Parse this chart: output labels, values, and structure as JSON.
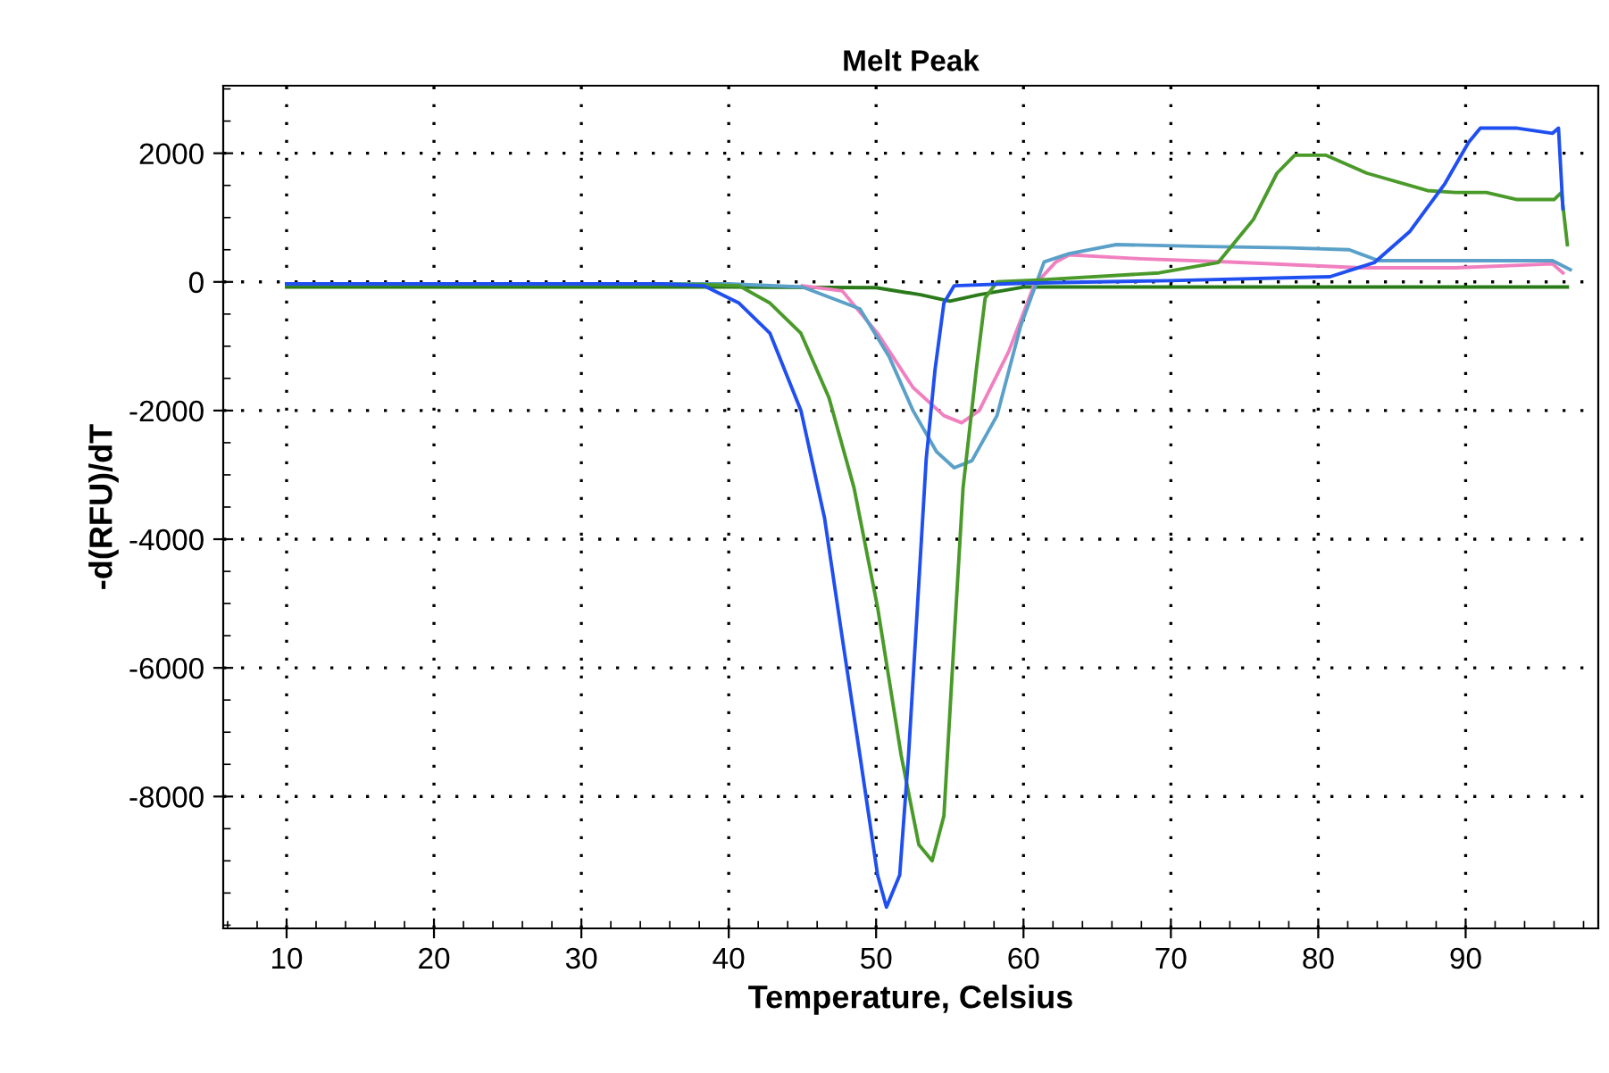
{
  "chart_data": {
    "type": "line",
    "title": "Melt Peak",
    "xlabel": "Temperature, Celsius",
    "ylabel": "-d(RFU)/dT",
    "xlim": [
      5.7,
      99
    ],
    "ylim": [
      -10050,
      3050
    ],
    "xticks": [
      10,
      20,
      30,
      40,
      50,
      60,
      70,
      80,
      90
    ],
    "yticks": [
      -8000,
      -6000,
      -4000,
      -2000,
      0,
      2000
    ],
    "grid": true,
    "line_style": "solid",
    "marker": "none",
    "series": [
      {
        "color": "#2a7a1a",
        "x": [
          10,
          40,
          50,
          53,
          55,
          57,
          60,
          96.9
        ],
        "values": [
          -80,
          -80,
          -90,
          -200,
          -300,
          -200,
          -80,
          -80
        ]
      },
      {
        "color": "#f080c0",
        "x": [
          45,
          47.7,
          50.1,
          52.5,
          54.6,
          55.8,
          57.0,
          59.0,
          60.7,
          62.2,
          63.1,
          67.9,
          74.0,
          82.9,
          89.3,
          95.9,
          96.6
        ],
        "values": [
          -60,
          -140,
          -800,
          -1640,
          -2080,
          -2190,
          -2000,
          -1080,
          -60,
          310,
          420,
          360,
          310,
          220,
          220,
          280,
          140
        ]
      },
      {
        "color": "#5aa0c8",
        "x": [
          10,
          40,
          45,
          48.9,
          50.9,
          52.5,
          54.1,
          55.3,
          56.5,
          58.2,
          59.8,
          61.4,
          63.1,
          66.3,
          72.3,
          78.0,
          82.1,
          84.1,
          95.9,
          97.1
        ],
        "values": [
          -30,
          -30,
          -80,
          -420,
          -1170,
          -2000,
          -2640,
          -2890,
          -2780,
          -2080,
          -690,
          310,
          440,
          580,
          550,
          530,
          500,
          330,
          330,
          190
        ]
      },
      {
        "color": "#4a9a2a",
        "x": [
          10,
          38,
          40.7,
          42.8,
          44.9,
          46.8,
          48.5,
          50.1,
          51.7,
          52.9,
          53.8,
          54.6,
          55.3,
          55.9,
          56.8,
          57.4,
          58.2,
          61.0,
          69.2,
          73.2,
          75.6,
          77.2,
          78.4,
          80.5,
          83.3,
          87.4,
          89.3,
          91.4,
          93.5,
          96.0,
          96.5,
          96.9
        ],
        "values": [
          -40,
          -40,
          -60,
          -330,
          -800,
          -1800,
          -3200,
          -5060,
          -7360,
          -8750,
          -9000,
          -8300,
          -5530,
          -3200,
          -1360,
          -250,
          0,
          30,
          140,
          300,
          970,
          1690,
          1970,
          1970,
          1690,
          1420,
          1390,
          1390,
          1280,
          1280,
          1390,
          580
        ]
      },
      {
        "color": "#1f4ff0",
        "x": [
          10,
          35.5,
          38.3,
          40.7,
          42.8,
          44.9,
          46.5,
          47.7,
          48.9,
          50.1,
          50.7,
          51.6,
          52.2,
          52.8,
          53.4,
          54.0,
          54.6,
          55.3,
          60,
          70,
          80.8,
          83.8,
          86.2,
          88.6,
          90.2,
          91.0,
          93.5,
          95.9,
          96.3,
          96.6
        ],
        "values": [
          -30,
          -30,
          -60,
          -330,
          -800,
          -2000,
          -3670,
          -5530,
          -7360,
          -9220,
          -9720,
          -9220,
          -7360,
          -5060,
          -2750,
          -1360,
          -330,
          -60,
          -20,
          20,
          80,
          300,
          780,
          1530,
          2170,
          2390,
          2390,
          2310,
          2390,
          1140
        ]
      }
    ]
  }
}
